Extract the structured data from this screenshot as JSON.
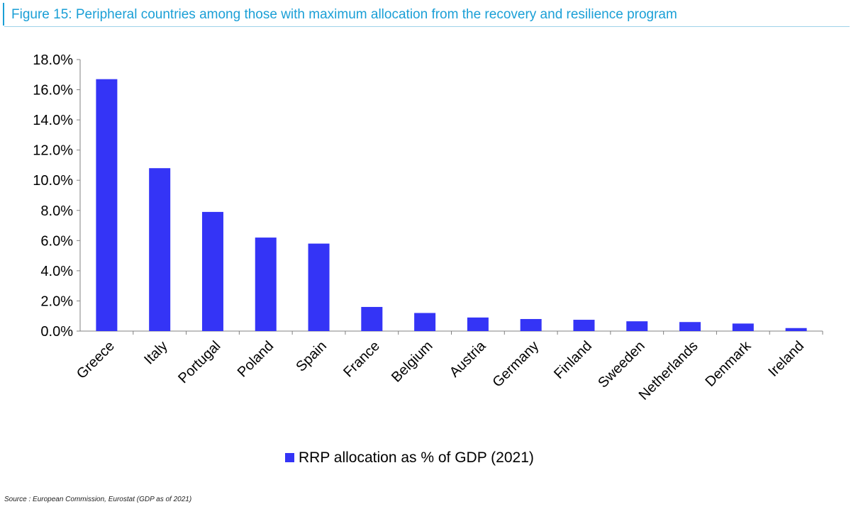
{
  "figure_title": "Figure 15: Peripheral countries among those with maximum allocation from the recovery and resilience program",
  "source_note": "Source : European Commission, Eurostat (GDP as of 2021)",
  "chart_data": {
    "type": "bar",
    "categories": [
      "Greece",
      "Italy",
      "Portugal",
      "Poland",
      "Spain",
      "France",
      "Belgium",
      "Austria",
      "Germany",
      "Finland",
      "Sweeden",
      "Netherlands",
      "Denmark",
      "Ireland"
    ],
    "series": [
      {
        "name": "RRP allocation as % of GDP (2021)",
        "values": [
          16.7,
          10.8,
          7.9,
          6.2,
          5.8,
          1.6,
          1.2,
          0.9,
          0.8,
          0.75,
          0.65,
          0.6,
          0.5,
          0.2
        ]
      }
    ],
    "ylim": [
      0,
      18
    ],
    "y_ticks": [
      0,
      2,
      4,
      6,
      8,
      10,
      12,
      14,
      16,
      18
    ],
    "y_tick_labels": [
      "0.0%",
      "2.0%",
      "4.0%",
      "6.0%",
      "8.0%",
      "10.0%",
      "12.0%",
      "14.0%",
      "16.0%",
      "18.0%"
    ],
    "grid": false,
    "legend_position": "bottom-center",
    "colors": {
      "bar": "#3434f6",
      "axis": "#808080",
      "text": "#000000"
    }
  }
}
